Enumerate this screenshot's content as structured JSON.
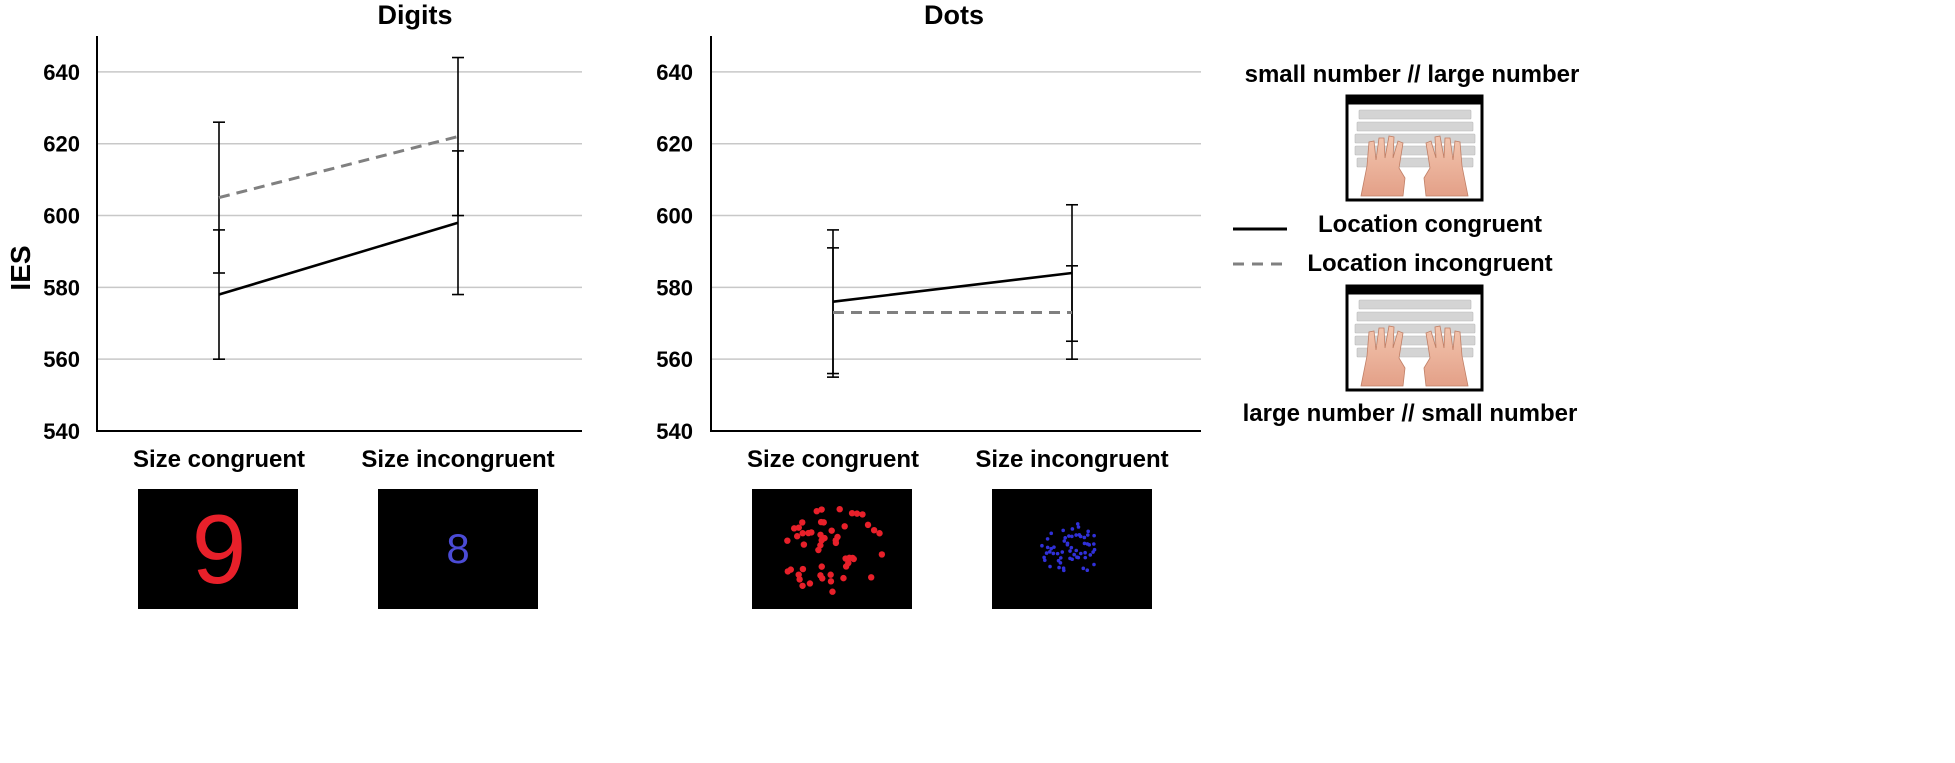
{
  "chart_data": [
    {
      "type": "line",
      "title": "Digits",
      "ylabel": "IES",
      "xlabel": "",
      "categories": [
        "Size congruent",
        "Size incongruent"
      ],
      "ylim": [
        540,
        650
      ],
      "yticks": [
        540,
        560,
        580,
        600,
        620,
        640
      ],
      "grid": true,
      "series": [
        {
          "name": "Location congruent",
          "style": "solid",
          "color": "#000000",
          "values": [
            578,
            598
          ],
          "err_low": [
            560,
            578
          ],
          "err_high": [
            596,
            618
          ]
        },
        {
          "name": "Location incongruent",
          "style": "dashed",
          "color": "#808080",
          "values": [
            605,
            622
          ],
          "err_low": [
            584,
            600
          ],
          "err_high": [
            626,
            644
          ]
        }
      ]
    },
    {
      "type": "line",
      "title": "Dots",
      "ylabel": "",
      "xlabel": "",
      "categories": [
        "Size congruent",
        "Size incongruent"
      ],
      "ylim": [
        540,
        650
      ],
      "yticks": [
        540,
        560,
        580,
        600,
        620,
        640
      ],
      "grid": true,
      "series": [
        {
          "name": "Location congruent",
          "style": "solid",
          "color": "#000000",
          "values": [
            576,
            584
          ],
          "err_low": [
            556,
            565
          ],
          "err_high": [
            596,
            603
          ]
        },
        {
          "name": "Location incongruent",
          "style": "dashed",
          "color": "#808080",
          "values": [
            573,
            573
          ],
          "err_low": [
            555,
            560
          ],
          "err_high": [
            591,
            586
          ]
        }
      ]
    }
  ],
  "legend": {
    "placement": "right",
    "items": [
      {
        "label": "Location congruent",
        "style": "solid",
        "color": "#000000"
      },
      {
        "label": "Location incongruent",
        "style": "dashed",
        "color": "#808080"
      }
    ]
  },
  "keyboard_labels": {
    "top": "small number // large number",
    "bottom": "large number // small number"
  },
  "stimuli": {
    "digit_congruent": {
      "glyph": "9",
      "color": "#e8202a"
    },
    "digit_incongruent": {
      "glyph": "8",
      "color": "#4b4bd6"
    },
    "dots_congruent_color": "#e8202a",
    "dots_incongruent_color": "#3030d8"
  }
}
